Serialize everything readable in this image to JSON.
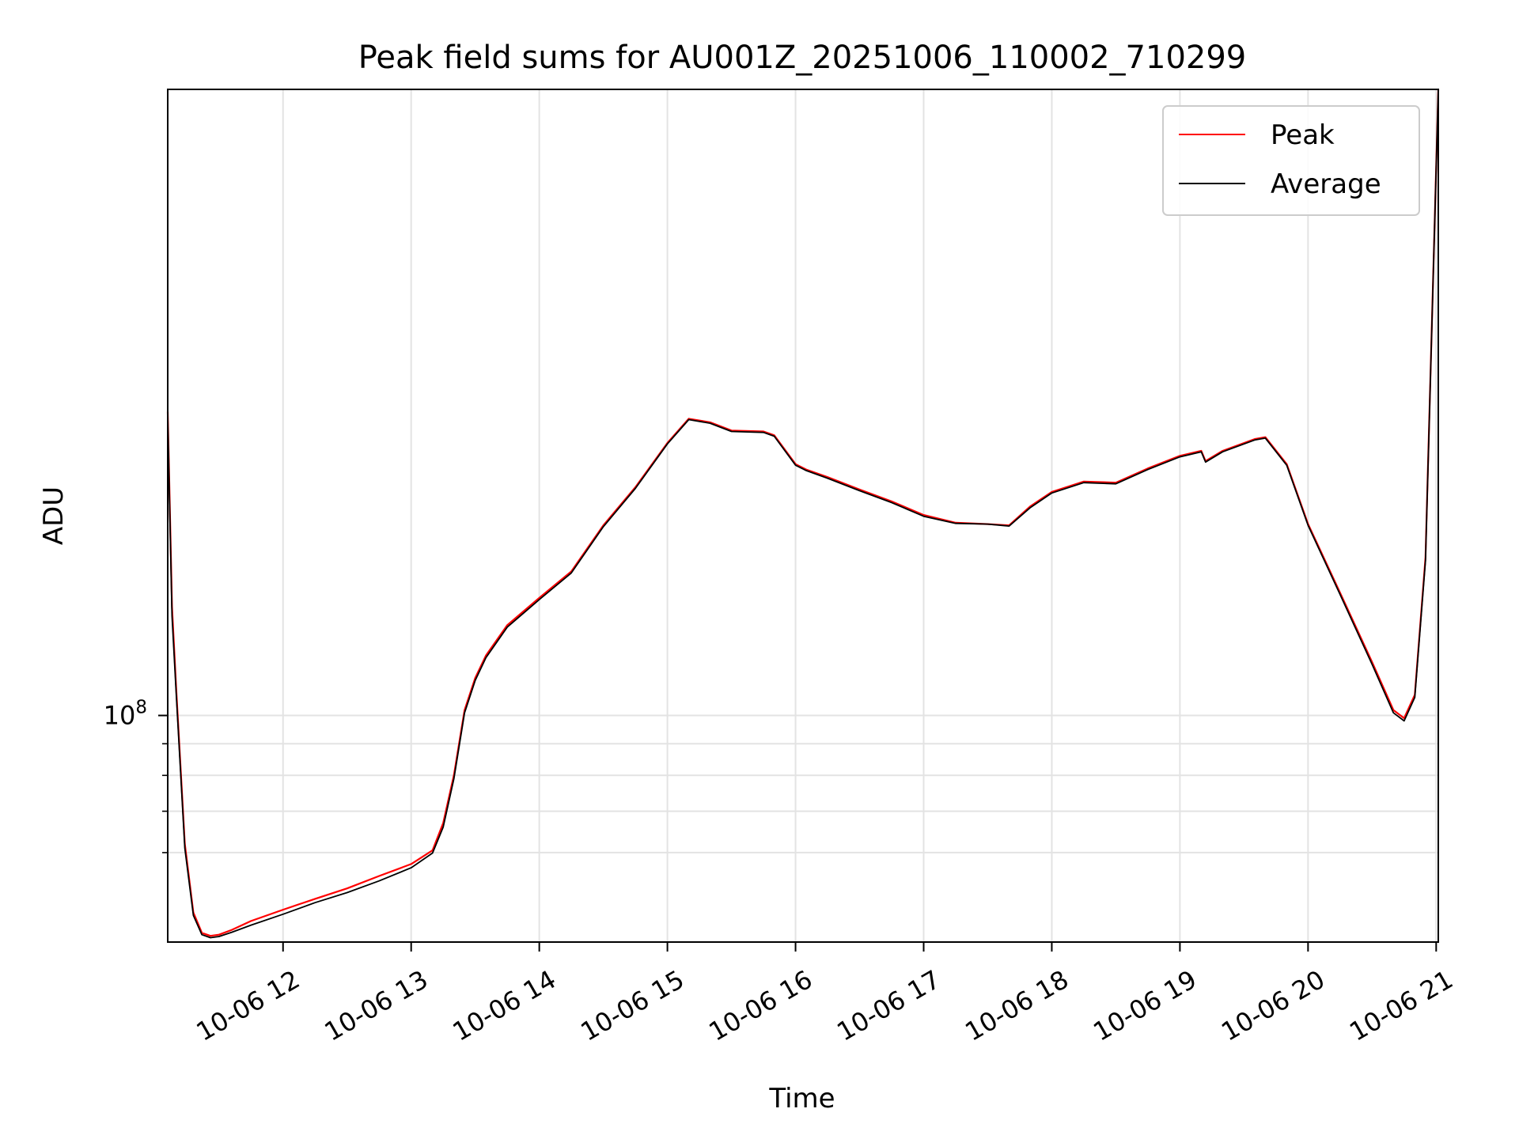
{
  "chart_data": {
    "type": "line",
    "title": "Peak field sums for AU001Z_20251006_110002_710299",
    "xlabel": "Time",
    "ylabel": "ADU",
    "yscale": "log",
    "grid": true,
    "legend_position": "top-right",
    "xlim": [
      "2025-10-06 11:06",
      "2025-10-06 21:01"
    ],
    "ylim": [
      43000000,
      1030000000
    ],
    "x_ticks": [
      {
        "value": "2025-10-06 12:00",
        "label": "10-06 12"
      },
      {
        "value": "2025-10-06 13:00",
        "label": "10-06 13"
      },
      {
        "value": "2025-10-06 14:00",
        "label": "10-06 14"
      },
      {
        "value": "2025-10-06 15:00",
        "label": "10-06 15"
      },
      {
        "value": "2025-10-06 16:00",
        "label": "10-06 16"
      },
      {
        "value": "2025-10-06 17:00",
        "label": "10-06 17"
      },
      {
        "value": "2025-10-06 18:00",
        "label": "10-06 18"
      },
      {
        "value": "2025-10-06 19:00",
        "label": "10-06 19"
      },
      {
        "value": "2025-10-06 20:00",
        "label": "10-06 20"
      },
      {
        "value": "2025-10-06 21:00",
        "label": "10-06 21"
      }
    ],
    "y_ticks": [
      {
        "value": 100000000,
        "base": "10",
        "exponent": "8"
      }
    ],
    "y_minor_ticks": [
      60000000,
      70000000,
      80000000,
      90000000
    ],
    "series": [
      {
        "name": "Peak",
        "color": "#ff0000",
        "x": [
          "2025-10-06 11:06",
          "2025-10-06 11:08",
          "2025-10-06 11:10",
          "2025-10-06 11:14",
          "2025-10-06 11:18",
          "2025-10-06 11:22",
          "2025-10-06 11:26",
          "2025-10-06 11:30",
          "2025-10-06 11:36",
          "2025-10-06 11:45",
          "2025-10-06 12:00",
          "2025-10-06 12:15",
          "2025-10-06 12:30",
          "2025-10-06 12:45",
          "2025-10-06 13:00",
          "2025-10-06 13:10",
          "2025-10-06 13:15",
          "2025-10-06 13:20",
          "2025-10-06 13:25",
          "2025-10-06 13:30",
          "2025-10-06 13:35",
          "2025-10-06 13:45",
          "2025-10-06 14:00",
          "2025-10-06 14:15",
          "2025-10-06 14:30",
          "2025-10-06 14:45",
          "2025-10-06 15:00",
          "2025-10-06 15:10",
          "2025-10-06 15:20",
          "2025-10-06 15:30",
          "2025-10-06 15:45",
          "2025-10-06 15:50",
          "2025-10-06 16:00",
          "2025-10-06 16:05",
          "2025-10-06 16:15",
          "2025-10-06 16:30",
          "2025-10-06 16:45",
          "2025-10-06 17:00",
          "2025-10-06 17:15",
          "2025-10-06 17:30",
          "2025-10-06 17:40",
          "2025-10-06 17:50",
          "2025-10-06 18:00",
          "2025-10-06 18:15",
          "2025-10-06 18:30",
          "2025-10-06 18:45",
          "2025-10-06 19:00",
          "2025-10-06 19:10",
          "2025-10-06 19:12",
          "2025-10-06 19:20",
          "2025-10-06 19:35",
          "2025-10-06 19:40",
          "2025-10-06 19:50",
          "2025-10-06 20:00",
          "2025-10-06 20:15",
          "2025-10-06 20:30",
          "2025-10-06 20:40",
          "2025-10-06 20:45",
          "2025-10-06 20:50",
          "2025-10-06 20:55",
          "2025-10-06 21:01"
        ],
        "values": [
          310000000,
          150000000,
          110000000,
          62000000,
          48000000,
          44500000,
          44000000,
          44200000,
          45000000,
          46500000,
          48500000,
          50500000,
          52500000,
          55000000,
          57500000,
          60500000,
          67000000,
          80000000,
          102000000,
          115000000,
          125000000,
          140000000,
          155000000,
          171000000,
          203000000,
          234000000,
          276000000,
          302000000,
          298000000,
          289000000,
          288000000,
          284000000,
          255000000,
          250000000,
          243000000,
          232000000,
          222000000,
          211000000,
          205000000,
          204000000,
          203000000,
          218000000,
          230000000,
          239000000,
          238000000,
          251000000,
          263000000,
          268000000,
          258000000,
          268000000,
          280000000,
          282000000,
          255000000,
          204000000,
          158000000,
          122000000,
          102000000,
          99000000,
          108000000,
          180000000,
          1030000000
        ]
      },
      {
        "name": "Average",
        "color": "#000000",
        "x": [
          "2025-10-06 11:06",
          "2025-10-06 11:08",
          "2025-10-06 11:10",
          "2025-10-06 11:14",
          "2025-10-06 11:18",
          "2025-10-06 11:22",
          "2025-10-06 11:26",
          "2025-10-06 11:30",
          "2025-10-06 11:36",
          "2025-10-06 11:45",
          "2025-10-06 12:00",
          "2025-10-06 12:15",
          "2025-10-06 12:30",
          "2025-10-06 12:45",
          "2025-10-06 13:00",
          "2025-10-06 13:10",
          "2025-10-06 13:15",
          "2025-10-06 13:20",
          "2025-10-06 13:25",
          "2025-10-06 13:30",
          "2025-10-06 13:35",
          "2025-10-06 13:45",
          "2025-10-06 14:00",
          "2025-10-06 14:15",
          "2025-10-06 14:30",
          "2025-10-06 14:45",
          "2025-10-06 15:00",
          "2025-10-06 15:10",
          "2025-10-06 15:20",
          "2025-10-06 15:30",
          "2025-10-06 15:45",
          "2025-10-06 15:50",
          "2025-10-06 16:00",
          "2025-10-06 16:05",
          "2025-10-06 16:15",
          "2025-10-06 16:30",
          "2025-10-06 16:45",
          "2025-10-06 17:00",
          "2025-10-06 17:15",
          "2025-10-06 17:30",
          "2025-10-06 17:40",
          "2025-10-06 17:50",
          "2025-10-06 18:00",
          "2025-10-06 18:15",
          "2025-10-06 18:30",
          "2025-10-06 18:45",
          "2025-10-06 19:00",
          "2025-10-06 19:10",
          "2025-10-06 19:12",
          "2025-10-06 19:20",
          "2025-10-06 19:35",
          "2025-10-06 19:40",
          "2025-10-06 19:50",
          "2025-10-06 20:00",
          "2025-10-06 20:15",
          "2025-10-06 20:30",
          "2025-10-06 20:40",
          "2025-10-06 20:45",
          "2025-10-06 20:50",
          "2025-10-06 20:55",
          "2025-10-06 21:01"
        ],
        "values": [
          305000000,
          145000000,
          108000000,
          61000000,
          47500000,
          44200000,
          43700000,
          43900000,
          44600000,
          45800000,
          47700000,
          49800000,
          51700000,
          54000000,
          56700000,
          59900000,
          66000000,
          79000000,
          101000000,
          114000000,
          124000000,
          139000000,
          154000000,
          170000000,
          202000000,
          233000000,
          275000000,
          301000000,
          297000000,
          288000000,
          287000000,
          283000000,
          254000000,
          249000000,
          242000000,
          231000000,
          221000000,
          210000000,
          204500000,
          204000000,
          202500000,
          217000000,
          229000000,
          238000000,
          237000000,
          250000000,
          262000000,
          267000000,
          257000000,
          267000000,
          279000000,
          281000000,
          254000000,
          203000000,
          157000000,
          121000000,
          101000000,
          98000000,
          107000000,
          178000000,
          1030000000
        ]
      }
    ]
  }
}
